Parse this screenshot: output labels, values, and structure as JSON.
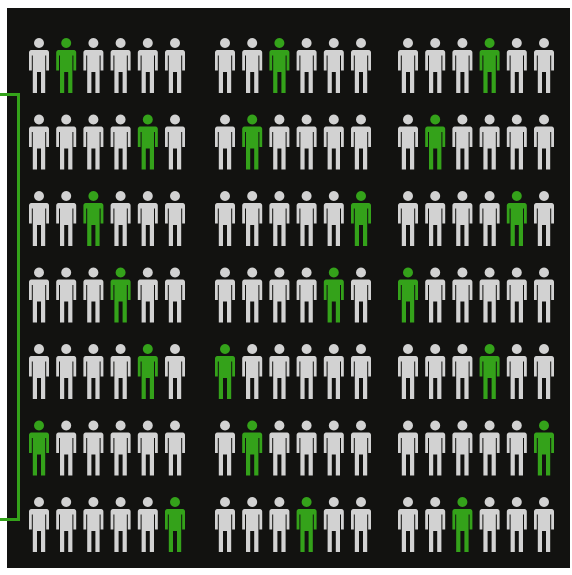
{
  "colors": {
    "background": "#121210",
    "figure_default": "#d2d2d2",
    "figure_highlight": "#34a21a",
    "bracket": "#34a21a"
  },
  "icon": "person-icon",
  "rows": [
    {
      "groups": [
        {
          "highlight": [
            1
          ]
        },
        {
          "highlight": [
            2
          ]
        },
        {
          "highlight": [
            3
          ]
        }
      ]
    },
    {
      "groups": [
        {
          "highlight": [
            4
          ]
        },
        {
          "highlight": [
            1
          ]
        },
        {
          "highlight": [
            1
          ]
        }
      ]
    },
    {
      "groups": [
        {
          "highlight": [
            2
          ]
        },
        {
          "highlight": [
            5
          ]
        },
        {
          "highlight": [
            4
          ]
        }
      ]
    },
    {
      "groups": [
        {
          "highlight": [
            3
          ]
        },
        {
          "highlight": [
            4
          ]
        },
        {
          "highlight": [
            0
          ]
        }
      ]
    },
    {
      "groups": [
        {
          "highlight": [
            4
          ]
        },
        {
          "highlight": [
            0
          ]
        },
        {
          "highlight": [
            3
          ]
        }
      ]
    },
    {
      "groups": [
        {
          "highlight": [
            0
          ]
        },
        {
          "highlight": [
            1
          ]
        },
        {
          "highlight": [
            5
          ]
        }
      ]
    },
    {
      "groups": [
        {
          "highlight": [
            5
          ]
        },
        {
          "highlight": [
            3
          ]
        },
        {
          "highlight": [
            2
          ]
        }
      ]
    }
  ],
  "figures_per_group": 6
}
